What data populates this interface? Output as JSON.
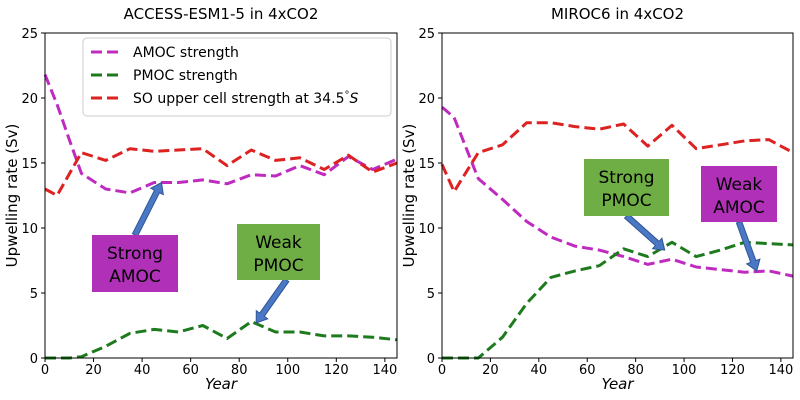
{
  "chart_data": [
    {
      "type": "line",
      "title": "ACCESS-ESM1-5 in 4xCO2",
      "xlabel": "Year",
      "ylabel": "Upwelling rate (Sv)",
      "xlim": [
        0,
        145
      ],
      "ylim": [
        0,
        25
      ],
      "xticks": [
        0,
        20,
        40,
        60,
        80,
        100,
        120,
        140
      ],
      "yticks": [
        0,
        5,
        10,
        15,
        20,
        25
      ],
      "legend_position": "top-center",
      "series": [
        {
          "name": "AMOC strength",
          "color": "#bf2bbf",
          "x": [
            0,
            5,
            10,
            15,
            25,
            35,
            45,
            55,
            65,
            75,
            85,
            95,
            105,
            115,
            125,
            135,
            145
          ],
          "y": [
            21.8,
            19.5,
            16.8,
            14.2,
            13.0,
            12.7,
            13.5,
            13.5,
            13.7,
            13.4,
            14.1,
            14.0,
            14.8,
            14.1,
            15.5,
            14.5,
            15.3
          ]
        },
        {
          "name": "PMOC strength",
          "color": "#1d7a1d",
          "x": [
            0,
            10,
            15,
            25,
            35,
            45,
            55,
            65,
            75,
            85,
            95,
            105,
            115,
            125,
            135,
            145
          ],
          "y": [
            0.0,
            0.0,
            0.1,
            0.9,
            1.9,
            2.2,
            2.0,
            2.5,
            1.5,
            2.8,
            2.0,
            2.0,
            1.7,
            1.7,
            1.6,
            1.4
          ]
        },
        {
          "name": "SO upper cell strength at 34.5°S",
          "color": "#dd2222",
          "x": [
            0,
            5,
            15,
            25,
            35,
            45,
            55,
            65,
            75,
            85,
            95,
            105,
            115,
            125,
            135,
            145
          ],
          "y": [
            13.0,
            12.5,
            15.8,
            15.2,
            16.1,
            15.9,
            16.0,
            16.1,
            14.8,
            16.0,
            15.2,
            15.4,
            14.5,
            15.6,
            14.3,
            15.0
          ]
        }
      ],
      "annotations": [
        {
          "text": [
            "Strong",
            "AMOC"
          ],
          "color": "#b030b8",
          "target": [
            48,
            13.5
          ]
        },
        {
          "text": [
            "Weak",
            "PMOC"
          ],
          "color": "#6fae45",
          "target": [
            87,
            2.7
          ]
        }
      ]
    },
    {
      "type": "line",
      "title": "MIROC6 in 4xCO2",
      "xlabel": "Year",
      "ylabel": "Upwelling rate (Sv)",
      "xlim": [
        0,
        145
      ],
      "ylim": [
        0,
        25
      ],
      "xticks": [
        0,
        20,
        40,
        60,
        80,
        100,
        120,
        140
      ],
      "yticks": [
        0,
        5,
        10,
        15,
        20,
        25
      ],
      "series": [
        {
          "name": "AMOC strength",
          "color": "#bf2bbf",
          "x": [
            0,
            5,
            15,
            25,
            35,
            45,
            55,
            65,
            75,
            85,
            95,
            105,
            115,
            125,
            135,
            145
          ],
          "y": [
            19.3,
            18.5,
            13.8,
            12.2,
            10.5,
            9.3,
            8.6,
            8.3,
            7.8,
            7.2,
            7.6,
            7.0,
            6.8,
            6.6,
            6.7,
            6.3
          ]
        },
        {
          "name": "PMOC strength",
          "color": "#1d7a1d",
          "x": [
            0,
            5,
            15,
            25,
            35,
            45,
            55,
            65,
            75,
            85,
            95,
            105,
            115,
            125,
            135,
            145
          ],
          "y": [
            0.0,
            0.0,
            0.0,
            1.6,
            4.2,
            6.2,
            6.7,
            7.1,
            8.4,
            7.8,
            8.9,
            7.8,
            8.3,
            8.9,
            8.8,
            8.7
          ]
        },
        {
          "name": "SO upper cell strength at 34.5°S",
          "color": "#dd2222",
          "x": [
            0,
            5,
            15,
            25,
            35,
            45,
            55,
            65,
            75,
            85,
            95,
            105,
            115,
            125,
            135,
            145
          ],
          "y": [
            14.9,
            12.8,
            15.8,
            16.4,
            18.1,
            18.1,
            17.8,
            17.6,
            18.0,
            16.3,
            17.9,
            16.1,
            16.4,
            16.7,
            16.8,
            15.8
          ]
        }
      ],
      "annotations": [
        {
          "text": [
            "Strong",
            "PMOC"
          ],
          "color": "#6fae45",
          "target": [
            92,
            8.3
          ]
        },
        {
          "text": [
            "Weak",
            "AMOC"
          ],
          "color": "#b030b8",
          "target": [
            130,
            6.7
          ]
        }
      ]
    }
  ]
}
